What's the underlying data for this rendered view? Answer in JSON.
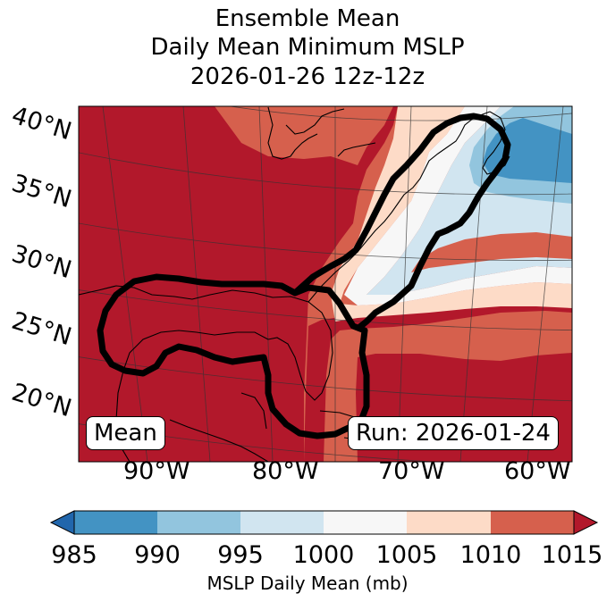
{
  "title": {
    "line1": "Ensemble Mean",
    "line2": "Daily Mean Minimum MSLP",
    "line3": "2026-01-26 12z-12z"
  },
  "map": {
    "lat_labels": [
      "40°N",
      "35°N",
      "30°N",
      "25°N",
      "20°N"
    ],
    "lon_labels": [
      "90°W",
      "80°W",
      "70°W",
      "60°W"
    ],
    "left_box": "Mean",
    "right_box": "Run: 2026-01-24",
    "extent_lon": [
      -96,
      -59
    ],
    "extent_lat": [
      15,
      41
    ]
  },
  "colorbar": {
    "ticks": [
      "985",
      "990",
      "995",
      "1000",
      "1005",
      "1010",
      "1015"
    ],
    "label": "MSLP Daily Mean (mb)",
    "colors": [
      "#2166ac",
      "#4393c3",
      "#92c5de",
      "#d1e5f0",
      "#f7f7f7",
      "#fddbc7",
      "#d6604d",
      "#b2182b"
    ],
    "extend": "both"
  },
  "legend_colors": {
    "contour": "#000000",
    "land_dominant": "#b2182b"
  }
}
